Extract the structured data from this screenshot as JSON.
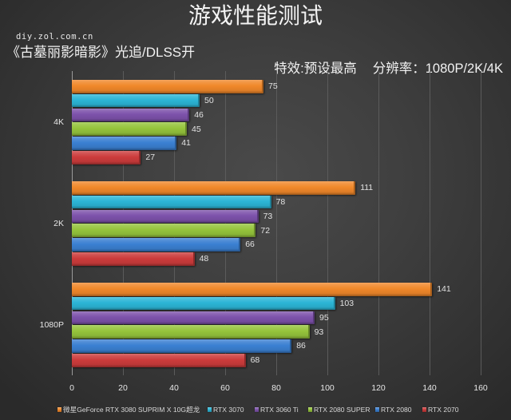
{
  "header": {
    "title": "游戏性能测试",
    "site": "diy.zol.com.cn",
    "game_info": "《古墓丽影暗影》光追/DLSS开",
    "effects": "特效:预设最高",
    "resolution": "分辨率：1080P/2K/4K"
  },
  "chart_data": {
    "type": "bar",
    "orientation": "horizontal",
    "title": "游戏性能测试",
    "subtitle": "《古墓丽影暗影》光追/DLSS开  特效:预设最高  分辨率：1080P/2K/4K",
    "xlabel": "",
    "ylabel": "",
    "xlim": [
      0,
      160
    ],
    "x_ticks": [
      0,
      20,
      40,
      60,
      80,
      100,
      120,
      140,
      160
    ],
    "grid": "vertical",
    "legend_position": "bottom",
    "categories": [
      "4K",
      "2K",
      "1080P"
    ],
    "series": [
      {
        "name": "微星GeForce RTX 3080 SUPRIM X 10G超龙",
        "color": "#f0882a",
        "values": [
          75,
          111,
          141
        ]
      },
      {
        "name": "RTX 3070",
        "color": "#2cb5d6",
        "values": [
          50,
          78,
          103
        ]
      },
      {
        "name": "RTX 3060 Ti",
        "color": "#7d52ab",
        "values": [
          46,
          73,
          95
        ]
      },
      {
        "name": "RTX 2080 SUPER",
        "color": "#95c43c",
        "values": [
          45,
          72,
          93
        ]
      },
      {
        "name": "RTX 2080",
        "color": "#3b80d2",
        "values": [
          41,
          66,
          86
        ]
      },
      {
        "name": "RTX 2070",
        "color": "#cc3c3c",
        "values": [
          27,
          48,
          68
        ]
      }
    ]
  }
}
